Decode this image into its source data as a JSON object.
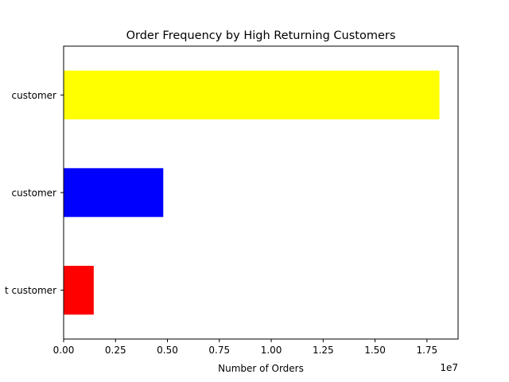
{
  "chart_data": {
    "type": "bar",
    "orientation": "horizontal",
    "title": "Order Frequency by High Returning Customers",
    "xlabel": "Number of Orders",
    "ylabel": "",
    "x_offset_label": "1e7",
    "xlim": [
      0,
      19000000
    ],
    "xticks": [
      0,
      2500000,
      5000000,
      7500000,
      10000000,
      12500000,
      15000000,
      17500000
    ],
    "xtick_labels": [
      "0.00",
      "0.25",
      "0.50",
      "0.75",
      "1.00",
      "1.25",
      "1.50",
      "1.75"
    ],
    "categories": [
      " customer",
      " customer",
      "t customer"
    ],
    "values": [
      18100000,
      4800000,
      1450000
    ],
    "colors": [
      "#ffff00",
      "#0000ff",
      "#ff0000"
    ],
    "grid": false,
    "legend": "none"
  }
}
